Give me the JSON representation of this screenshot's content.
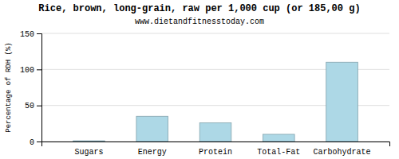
{
  "chart_data": {
    "type": "bar",
    "title": "Rice, brown, long-grain, raw per 1,000 cup (or 185,00 g)",
    "subtitle": "www.dietandfitnesstoday.com",
    "categories": [
      "Sugars",
      "Energy",
      "Protein",
      "Total-Fat",
      "Carbohydrate"
    ],
    "values": [
      1,
      35,
      26,
      10,
      110
    ],
    "color": "#add8e6",
    "ylabel": "Percentage of RDH (%)",
    "ylim": [
      0,
      150
    ],
    "yticks": [
      0,
      50,
      100,
      150
    ],
    "grid": true
  }
}
